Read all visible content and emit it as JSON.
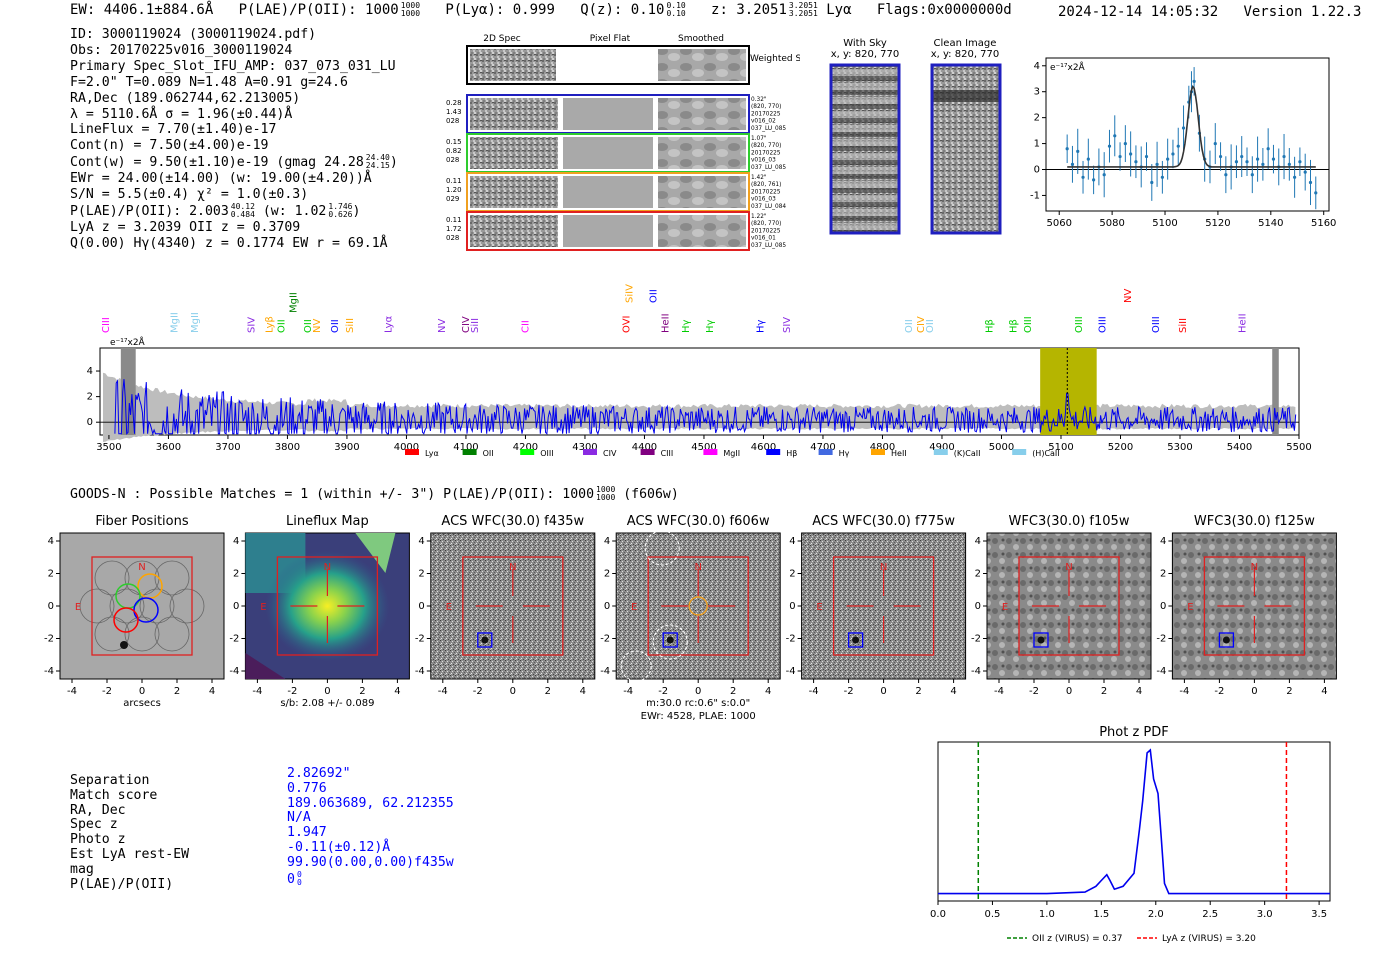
{
  "header": {
    "ew": "EW: 4406.1±884.6Å",
    "plae_label": "P(LAE)/P(OII): 1000",
    "plae_hi": "1000",
    "plae_lo": "1000",
    "plya": "P(Lyα): 0.999",
    "qz_label": "Q(z): 0.10",
    "qz_hi": "0.10",
    "qz_lo": "0.10",
    "z_label": "z: 3.2051",
    "z_hi": "3.2051",
    "z_lo": "3.2051",
    "z_line": "Lyα",
    "flags": "Flags:0x0000000d",
    "timestamp": "2024-12-14 14:05:32",
    "version": "Version 1.22.3"
  },
  "info": {
    "id": "ID: 3000119024 (3000119024.pdf)",
    "obs": "Obs: 20170225v016_3000119024",
    "primary": "Primary Spec_Slot_IFU_AMP: 037_073_031_LU",
    "fparams": "F=2.0\"  T=0.089  N=1.48  A=0.91  g=24.6",
    "radec": "RA,Dec (189.062744,62.213005)",
    "lambda": "λ = 5110.6Å  σ = 1.96(±0.44)Å",
    "lineflux": "LineFlux = 7.70(±1.40)e-17",
    "contn": "Cont(n) = 7.50(±4.00)e-19",
    "contw": "Cont(w) = 9.50(±1.10)e-19 (gmag 24.28",
    "gmag_hi": "24.40",
    "gmag_lo": "24.15",
    "contw_end": ")",
    "ewr": "EWr = 24.00(±14.00) (w: 19.00(±4.20))Å",
    "sn": "S/N = 5.5(±0.4)  χ² = 1.0(±0.3)",
    "plae": "P(LAE)/P(OII): 2.003",
    "plae_hi": "40.12",
    "plae_lo": "0.484",
    "plae_w": "(w: 1.02",
    "plae_w_hi": "1.746",
    "plae_w_lo": "0.626",
    "plae_end": ")",
    "lya": "LyA z = 3.2039  OII z = 0.3709",
    "hg": "Q(0.00) Hγ(4340) z = 0.1774  EW r = 69.1Å"
  },
  "cutouts": {
    "headers": [
      "2D Spec",
      "Pixel Flat",
      "Smoothed"
    ],
    "weighted": "Weighted Sum",
    "rows": [
      {
        "left": [
          "0.28",
          "1.43",
          "028"
        ],
        "right": [
          "0.32\"",
          "(820, 770)",
          "20170225",
          "v016_02",
          "037_LU_085"
        ],
        "color": "#1f1fbf"
      },
      {
        "left": [
          "0.15",
          "0.82",
          "028"
        ],
        "right": [
          "1.07\"",
          "(820, 770)",
          "20170225",
          "v016_03",
          "037_LU_085"
        ],
        "color": "#2ecc2e"
      },
      {
        "left": [
          "0.11",
          "1.20",
          "029"
        ],
        "right": [
          "1.42\"",
          "(820, 761)",
          "20170225",
          "v016_03",
          "037_LU_084"
        ],
        "color": "#f0a020"
      },
      {
        "left": [
          "0.11",
          "1.72",
          "028"
        ],
        "right": [
          "1.22\"",
          "(820, 770)",
          "20170225",
          "v016_01",
          "037_LU_085"
        ],
        "color": "#e02020"
      }
    ]
  },
  "sky": {
    "with_sky": "With Sky",
    "with_sky_xy": "x, y: 820, 770",
    "clean": "Clean Image",
    "clean_xy": "x, y: 820, 770"
  },
  "zoom_chart": {
    "unit_label": "e⁻¹⁷x2Å",
    "xticks": [
      "5060",
      "5080",
      "5100",
      "5120",
      "5140",
      "5160"
    ],
    "yticks": [
      "4",
      "3",
      "2",
      "1",
      "0",
      "-1"
    ]
  },
  "full_spec": {
    "unit_label": "e⁻¹⁷x2Å",
    "xticks": [
      "3500",
      "3600",
      "3700",
      "3800",
      "3900",
      "4000",
      "4100",
      "4200",
      "4300",
      "4400",
      "4500",
      "4600",
      "4700",
      "4800",
      "4900",
      "5000",
      "5100",
      "5200",
      "5300",
      "5400",
      "5500"
    ],
    "yticks": [
      "4",
      "2",
      "0"
    ],
    "lines": [
      {
        "name": "CIII",
        "color": "#ff00ff"
      },
      {
        "name": "MgII",
        "color": "#87ceeb"
      },
      {
        "name": "MgII",
        "color": "#87ceeb"
      },
      {
        "name": "SIV",
        "color": "#8a2be2"
      },
      {
        "name": "Lyβ",
        "color": "#ffa500"
      },
      {
        "name": "OII",
        "color": "#00cc00"
      },
      {
        "name": "MgII",
        "color": "#008000"
      },
      {
        "name": "OII",
        "color": "#00cc00"
      },
      {
        "name": "NV",
        "color": "#ffa500"
      },
      {
        "name": "OII",
        "color": "#0000ff"
      },
      {
        "name": "SiII",
        "color": "#ffa500"
      },
      {
        "name": "Lyα",
        "color": "#8a2be2"
      },
      {
        "name": "NV",
        "color": "#8a2be2"
      },
      {
        "name": "CIV",
        "color": "#800080"
      },
      {
        "name": "SiII",
        "color": "#8a2be2"
      },
      {
        "name": "CII",
        "color": "#ff00ff"
      },
      {
        "name": "OVI",
        "color": "#ff0000"
      },
      {
        "name": "SiIV",
        "color": "#ffa500"
      },
      {
        "name": "OII",
        "color": "#0000ff"
      },
      {
        "name": "HeII",
        "color": "#800080"
      },
      {
        "name": "Hγ",
        "color": "#00cc00"
      },
      {
        "name": "Hγ",
        "color": "#00cc00"
      },
      {
        "name": "Hγ",
        "color": "#0000ff"
      },
      {
        "name": "SIV",
        "color": "#8a2be2"
      },
      {
        "name": "OII",
        "color": "#87ceeb"
      },
      {
        "name": "CIV",
        "color": "#ffa500"
      },
      {
        "name": "OII",
        "color": "#87ceeb"
      },
      {
        "name": "Hβ",
        "color": "#00cc00"
      },
      {
        "name": "Hβ",
        "color": "#00cc00"
      },
      {
        "name": "OIII",
        "color": "#00cc00"
      },
      {
        "name": "OIII",
        "color": "#00cc00"
      },
      {
        "name": "OIII",
        "color": "#0000ff"
      },
      {
        "name": "NV",
        "color": "#ff0000"
      },
      {
        "name": "OIII",
        "color": "#0000ff"
      },
      {
        "name": "SiII",
        "color": "#ff0000"
      },
      {
        "name": "HeII",
        "color": "#8a2be2"
      }
    ],
    "legend": [
      {
        "name": "Lyα",
        "color": "#ff0000"
      },
      {
        "name": "OII",
        "color": "#008000"
      },
      {
        "name": "OIII",
        "color": "#00ff00"
      },
      {
        "name": "CIV",
        "color": "#8a2be2"
      },
      {
        "name": "CIII",
        "color": "#800080"
      },
      {
        "name": "MgII",
        "color": "#ff00ff"
      },
      {
        "name": "Hβ",
        "color": "#0000ff"
      },
      {
        "name": "Hγ",
        "color": "#4169e1"
      },
      {
        "name": "HeII",
        "color": "#ffa500"
      },
      {
        "name": "(K)CaII",
        "color": "#87ceeb"
      },
      {
        "name": "(H)CaII",
        "color": "#87ceeb"
      }
    ]
  },
  "matches": {
    "line": "GOODS-N : Possible Matches = 1 (within +/- 3\")  P(LAE)/P(OII): 1000",
    "hi": "1000",
    "lo": "1000",
    "band": "(f606w)"
  },
  "panels": [
    {
      "title": "Fiber Positions",
      "caption": "arcsecs"
    },
    {
      "title": "Lineflux Map",
      "caption": "s/b: 2.08 +/- 0.089"
    },
    {
      "title": "ACS WFC(30.0) f435w",
      "caption": ""
    },
    {
      "title": "ACS WFC(30.0) f606w",
      "caption": "m:30.0 rc:0.6\"  s:0.0\"",
      "caption2": "EWr: 4528, PLAE: 1000"
    },
    {
      "title": "ACS WFC(30.0) f775w",
      "caption": ""
    },
    {
      "title": "WFC3(30.0) f105w",
      "caption": ""
    },
    {
      "title": "WFC3(30.0) f125w",
      "caption": ""
    }
  ],
  "panel_ticks": [
    "-4",
    "-2",
    "0",
    "2",
    "4"
  ],
  "panel_yticks": [
    "4",
    "2",
    "0",
    "-2",
    "-4"
  ],
  "compass": {
    "n": "N",
    "e": "E"
  },
  "match_table": {
    "labels": [
      "Separation",
      "Match score",
      "RA, Dec",
      "Spec z",
      "Photo z",
      "Est LyA rest-EW",
      "mag",
      "P(LAE)/P(OII)"
    ],
    "values": [
      "2.82692\"",
      "0.776",
      "189.063689, 62.212355",
      "N/A",
      "1.947",
      "-0.11(±0.12)Å",
      "99.90(0.00,0.00)f435w",
      "0"
    ],
    "plae_hi": "0",
    "plae_lo": "0"
  },
  "photz": {
    "title": "Phot z PDF",
    "xticks": [
      "0.0",
      "0.5",
      "1.0",
      "1.5",
      "2.0",
      "2.5",
      "3.0",
      "3.5"
    ],
    "legend_oii": "OII z (VIRUS) = 0.37",
    "legend_lya": "LyA z (VIRUS) = 3.20"
  },
  "chart_data": [
    {
      "type": "line",
      "title": "",
      "ylabel": "e-17x2Å",
      "xlim": [
        5055,
        5162
      ],
      "ylim": [
        -1.6,
        4.3
      ],
      "x": [
        5063,
        5065,
        5067,
        5069,
        5071,
        5073,
        5075,
        5077,
        5079,
        5081,
        5083,
        5085,
        5087,
        5089,
        5091,
        5093,
        5095,
        5097,
        5099,
        5101,
        5103,
        5105,
        5107,
        5109,
        5110,
        5111,
        5113,
        5115,
        5117,
        5119,
        5121,
        5123,
        5125,
        5127,
        5129,
        5131,
        5133,
        5135,
        5137,
        5139,
        5141,
        5143,
        5145,
        5147,
        5149,
        5151,
        5153,
        5155,
        5157
      ],
      "series": [
        {
          "name": "data",
          "values": [
            0.8,
            0.2,
            0.7,
            -0.3,
            0.4,
            -0.4,
            0.1,
            -0.2,
            0.9,
            1.3,
            0.5,
            1.0,
            0.6,
            0.3,
            0.1,
            0.5,
            -0.5,
            0.2,
            -0.3,
            0.4,
            0.6,
            0.9,
            1.6,
            2.6,
            3.0,
            3.4,
            1.4,
            0.4,
            0.1,
            1.0,
            0.5,
            -0.2,
            0.1,
            0.3,
            0.5,
            0.3,
            -0.2,
            0.4,
            0.2,
            0.8,
            0.4,
            0.1,
            0.5,
            0.2,
            -0.3,
            0.3,
            -0.1,
            -0.5,
            -0.9
          ]
        },
        {
          "name": "fit",
          "gaussian": {
            "center": 5110.6,
            "sigma": 1.96,
            "amplitude": 3.1,
            "baseline": 0.1
          }
        }
      ]
    },
    {
      "type": "line",
      "title": "",
      "ylabel": "e-17x2Å",
      "xlim": [
        3485,
        5500
      ],
      "ylim": [
        -1.0,
        5.8
      ],
      "highlight_range": [
        5065,
        5160
      ],
      "line_marker": 5110.6,
      "series": [
        {
          "name": "flux",
          "generator": "noisy-spectrum"
        },
        {
          "name": "error",
          "generator": "noise-envelope"
        }
      ]
    },
    {
      "type": "line",
      "title": "Phot z PDF",
      "xlim": [
        0.0,
        3.6
      ],
      "x": [
        0.0,
        0.5,
        1.0,
        1.35,
        1.45,
        1.5,
        1.55,
        1.58,
        1.62,
        1.7,
        1.8,
        1.85,
        1.88,
        1.92,
        1.95,
        1.98,
        2.02,
        2.05,
        2.08,
        2.12,
        2.2,
        2.5,
        3.0,
        3.6
      ],
      "series": [
        {
          "name": "pdf",
          "values": [
            0.01,
            0.01,
            0.01,
            0.02,
            0.06,
            0.1,
            0.14,
            0.1,
            0.04,
            0.06,
            0.15,
            0.45,
            0.65,
            0.98,
            1.0,
            0.8,
            0.7,
            0.4,
            0.08,
            0.01,
            0.01,
            0.01,
            0.01,
            0.01
          ]
        }
      ],
      "vlines": [
        {
          "x": 0.37,
          "label": "OII z (VIRUS) = 0.37"
        },
        {
          "x": 3.2,
          "label": "LyA z (VIRUS) = 3.20"
        }
      ]
    }
  ]
}
